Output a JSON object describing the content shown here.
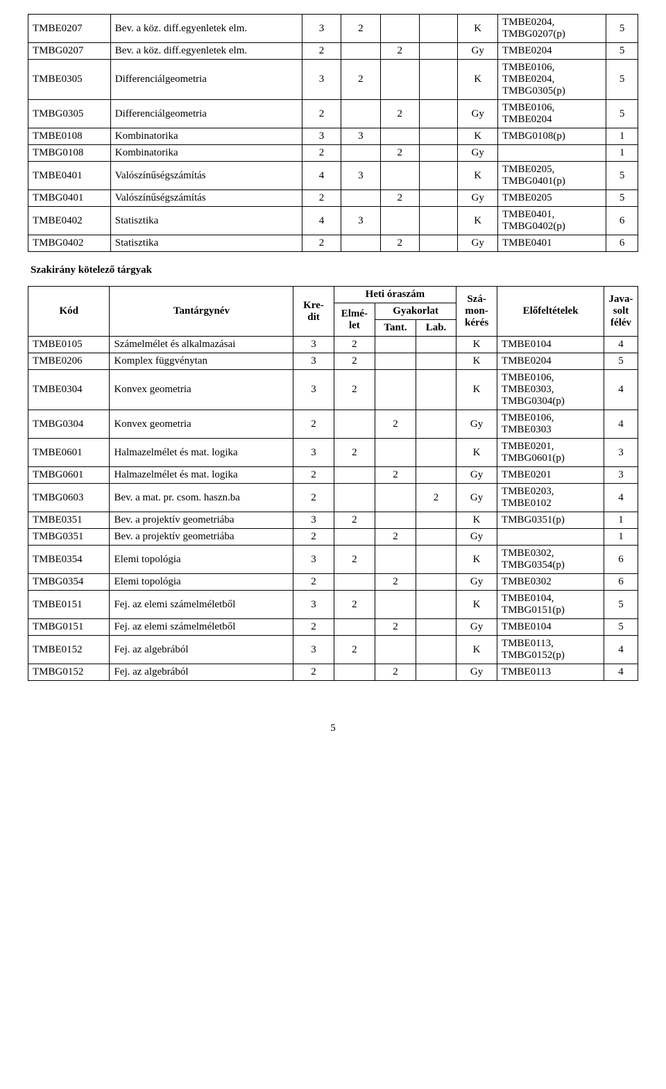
{
  "table1": {
    "rows": [
      {
        "code": "TMBE0207",
        "name": "Bev. a köz. diff.egyenletek elm.",
        "kredit": "3",
        "elm": "2",
        "tant": "",
        "lab": "",
        "szam": "K",
        "req": "TMBE0204, TMBG0207(p)",
        "sem": "5"
      },
      {
        "code": "TMBG0207",
        "name": "Bev. a köz. diff.egyenletek elm.",
        "kredit": "2",
        "elm": "",
        "tant": "2",
        "lab": "",
        "szam": "Gy",
        "req": "TMBE0204",
        "sem": "5"
      },
      {
        "code": "TMBE0305",
        "name": "Differenciálgeometria",
        "kredit": "3",
        "elm": "2",
        "tant": "",
        "lab": "",
        "szam": "K",
        "req": "TMBE0106, TMBE0204, TMBG0305(p)",
        "sem": "5"
      },
      {
        "code": "TMBG0305",
        "name": "Differenciálgeometria",
        "kredit": "2",
        "elm": "",
        "tant": "2",
        "lab": "",
        "szam": "Gy",
        "req": "TMBE0106, TMBE0204",
        "sem": "5"
      },
      {
        "code": "TMBE0108",
        "name": "Kombinatorika",
        "kredit": "3",
        "elm": "3",
        "tant": "",
        "lab": "",
        "szam": "K",
        "req": "TMBG0108(p)",
        "sem": "1"
      },
      {
        "code": "TMBG0108",
        "name": "Kombinatorika",
        "kredit": "2",
        "elm": "",
        "tant": "2",
        "lab": "",
        "szam": "Gy",
        "req": "",
        "sem": "1"
      },
      {
        "code": "TMBE0401",
        "name": "Valószínűségszámítás",
        "kredit": "4",
        "elm": "3",
        "tant": "",
        "lab": "",
        "szam": "K",
        "req": "TMBE0205, TMBG0401(p)",
        "sem": "5"
      },
      {
        "code": "TMBG0401",
        "name": "Valószínűségszámítás",
        "kredit": "2",
        "elm": "",
        "tant": "2",
        "lab": "",
        "szam": "Gy",
        "req": "TMBE0205",
        "sem": "5"
      },
      {
        "code": "TMBE0402",
        "name": "Statisztika",
        "kredit": "4",
        "elm": "3",
        "tant": "",
        "lab": "",
        "szam": "K",
        "req": "TMBE0401, TMBG0402(p)",
        "sem": "6"
      },
      {
        "code": "TMBG0402",
        "name": "Statisztika",
        "kredit": "2",
        "elm": "",
        "tant": "2",
        "lab": "",
        "szam": "Gy",
        "req": "TMBE0401",
        "sem": "6"
      }
    ]
  },
  "section_title": "Szakirány kötelező tárgyak",
  "header": {
    "kod": "Kód",
    "tantargynev": "Tantárgynév",
    "kredit": "Kre-dit",
    "heti": "Heti óraszám",
    "elmelet": "Elmé-let",
    "gyakorlat": "Gyakorlat",
    "tant": "Tant.",
    "lab": "Lab.",
    "szamonkeres": "Szá-mon-kérés",
    "elofeltetelek": "Előfeltételek",
    "javasolt": "Java-solt félév"
  },
  "table2": {
    "rows": [
      {
        "code": "TMBE0105",
        "name": "Számelmélet és alkalmazásai",
        "kredit": "3",
        "elm": "2",
        "tant": "",
        "lab": "",
        "szam": "K",
        "req": "TMBE0104",
        "sem": "4"
      },
      {
        "code": "TMBE0206",
        "name": "Komplex függvénytan",
        "kredit": "3",
        "elm": "2",
        "tant": "",
        "lab": "",
        "szam": "K",
        "req": "TMBE0204",
        "sem": "5"
      },
      {
        "code": "TMBE0304",
        "name": "Konvex geometria",
        "kredit": "3",
        "elm": "2",
        "tant": "",
        "lab": "",
        "szam": "K",
        "req": "TMBE0106, TMBE0303, TMBG0304(p)",
        "sem": "4"
      },
      {
        "code": "TMBG0304",
        "name": "Konvex geometria",
        "kredit": "2",
        "elm": "",
        "tant": "2",
        "lab": "",
        "szam": "Gy",
        "req": "TMBE0106, TMBE0303",
        "sem": "4"
      },
      {
        "code": "TMBE0601",
        "name": "Halmazelmélet és mat. logika",
        "kredit": "3",
        "elm": "2",
        "tant": "",
        "lab": "",
        "szam": "K",
        "req": "TMBE0201, TMBG0601(p)",
        "sem": "3"
      },
      {
        "code": "TMBG0601",
        "name": "Halmazelmélet és mat. logika",
        "kredit": "2",
        "elm": "",
        "tant": "2",
        "lab": "",
        "szam": "Gy",
        "req": "TMBE0201",
        "sem": "3"
      },
      {
        "code": "TMBG0603",
        "name": "Bev. a mat. pr. csom. haszn.ba",
        "kredit": "2",
        "elm": "",
        "tant": "",
        "lab": "2",
        "szam": "Gy",
        "req": "TMBE0203, TMBE0102",
        "sem": "4"
      },
      {
        "code": "TMBE0351",
        "name": "Bev. a projektív geometriába",
        "kredit": "3",
        "elm": "2",
        "tant": "",
        "lab": "",
        "szam": "K",
        "req": "TMBG0351(p)",
        "sem": "1"
      },
      {
        "code": "TMBG0351",
        "name": "Bev. a projektív geometriába",
        "kredit": "2",
        "elm": "",
        "tant": "2",
        "lab": "",
        "szam": "Gy",
        "req": "",
        "sem": "1"
      },
      {
        "code": "TMBE0354",
        "name": "Elemi topológia",
        "kredit": "3",
        "elm": "2",
        "tant": "",
        "lab": "",
        "szam": "K",
        "req": "TMBE0302, TMBG0354(p)",
        "sem": "6"
      },
      {
        "code": "TMBG0354",
        "name": "Elemi topológia",
        "kredit": "2",
        "elm": "",
        "tant": "2",
        "lab": "",
        "szam": "Gy",
        "req": "TMBE0302",
        "sem": "6"
      },
      {
        "code": "TMBE0151",
        "name": "Fej. az elemi számelméletből",
        "kredit": "3",
        "elm": "2",
        "tant": "",
        "lab": "",
        "szam": "K",
        "req": "TMBE0104, TMBG0151(p)",
        "sem": "5"
      },
      {
        "code": "TMBG0151",
        "name": "Fej. az elemi számelméletből",
        "kredit": "2",
        "elm": "",
        "tant": "2",
        "lab": "",
        "szam": "Gy",
        "req": "TMBE0104",
        "sem": "5"
      },
      {
        "code": "TMBE0152",
        "name": "Fej. az algebrából",
        "kredit": "3",
        "elm": "2",
        "tant": "",
        "lab": "",
        "szam": "K",
        "req": "TMBE0113, TMBG0152(p)",
        "sem": "4"
      },
      {
        "code": "TMBG0152",
        "name": "Fej. az algebrából",
        "kredit": "2",
        "elm": "",
        "tant": "2",
        "lab": "",
        "szam": "Gy",
        "req": "TMBE0113",
        "sem": "4"
      }
    ]
  },
  "page_number": "5"
}
